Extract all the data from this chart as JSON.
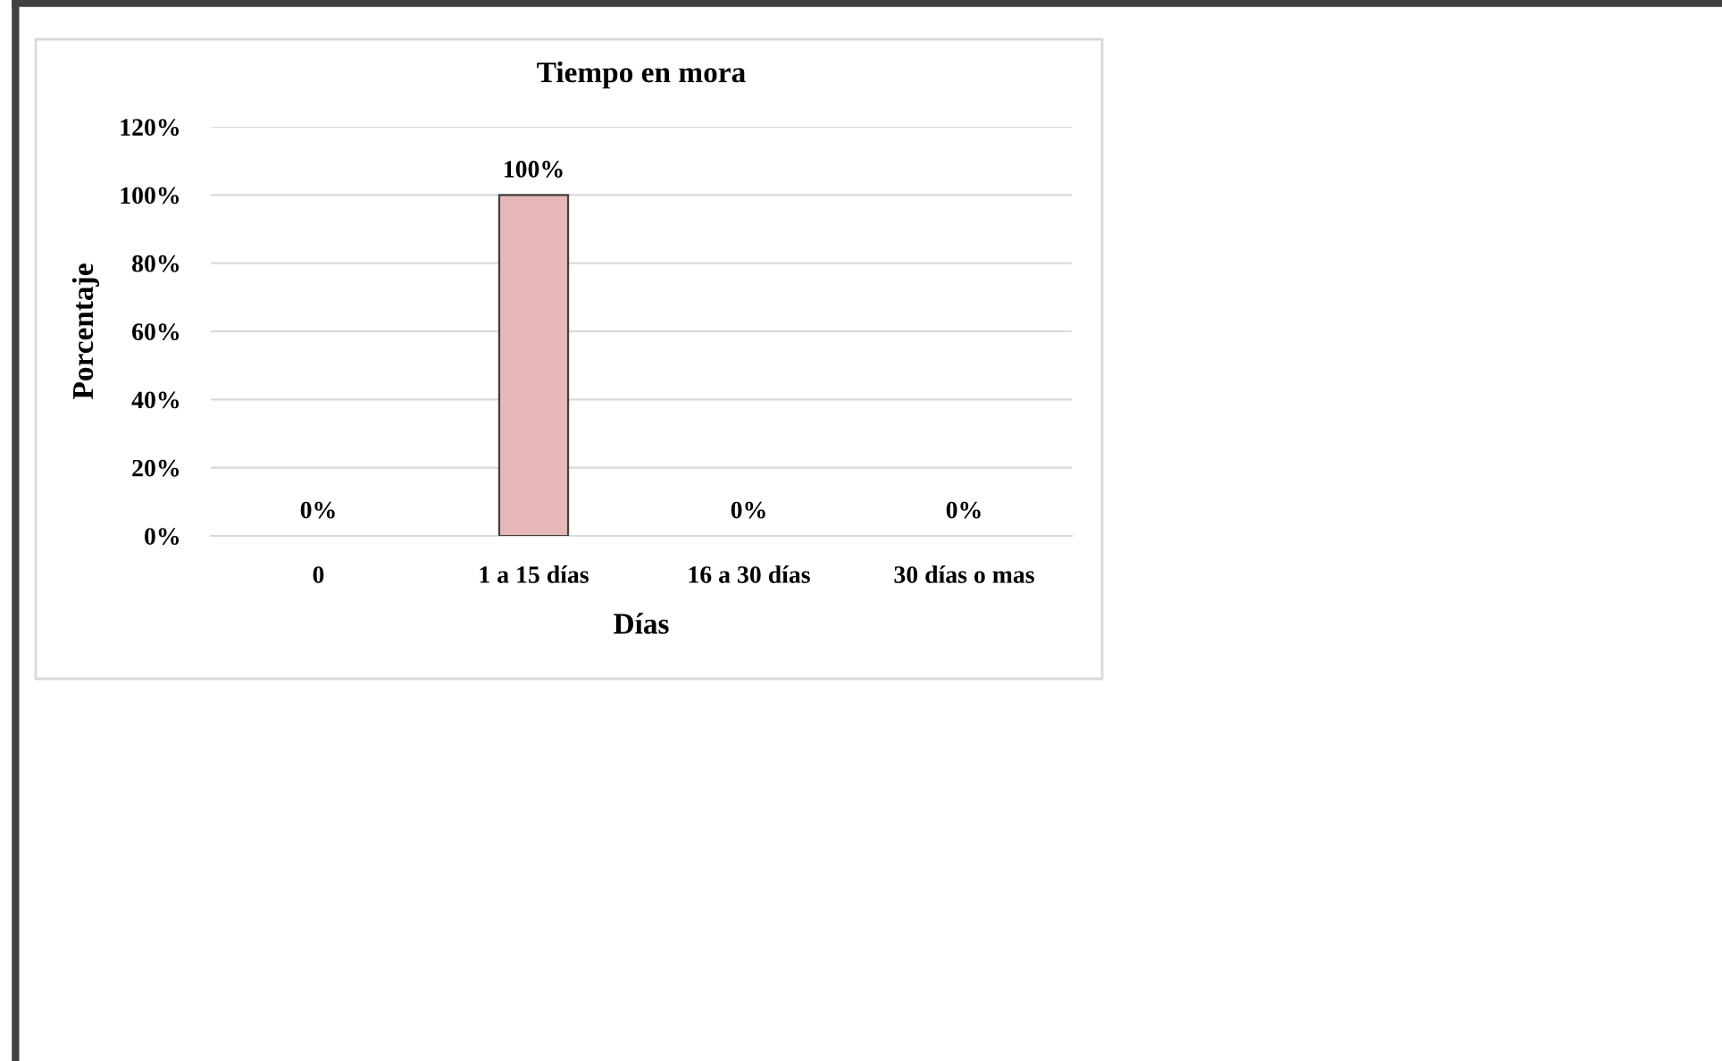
{
  "chart_data": {
    "type": "bar",
    "title": "Tiempo en mora",
    "xlabel": "Días",
    "ylabel": "Porcentaje",
    "categories": [
      "0",
      "1 a 15 días",
      "16 a 30 días",
      "30 días o mas"
    ],
    "values": [
      0,
      100,
      0,
      0
    ],
    "value_labels": [
      "0%",
      "100%",
      "0%",
      "0%"
    ],
    "color": "#e6b8b7",
    "ylim": [
      0,
      120
    ],
    "yticks": [
      {
        "value": 0,
        "label": "0%"
      },
      {
        "value": 20,
        "label": "20%"
      },
      {
        "value": 40,
        "label": "40%"
      },
      {
        "value": 60,
        "label": "60%"
      },
      {
        "value": 80,
        "label": "80%"
      },
      {
        "value": 100,
        "label": "100%"
      },
      {
        "value": 120,
        "label": "120%"
      }
    ],
    "grid": "y",
    "legend": false
  }
}
